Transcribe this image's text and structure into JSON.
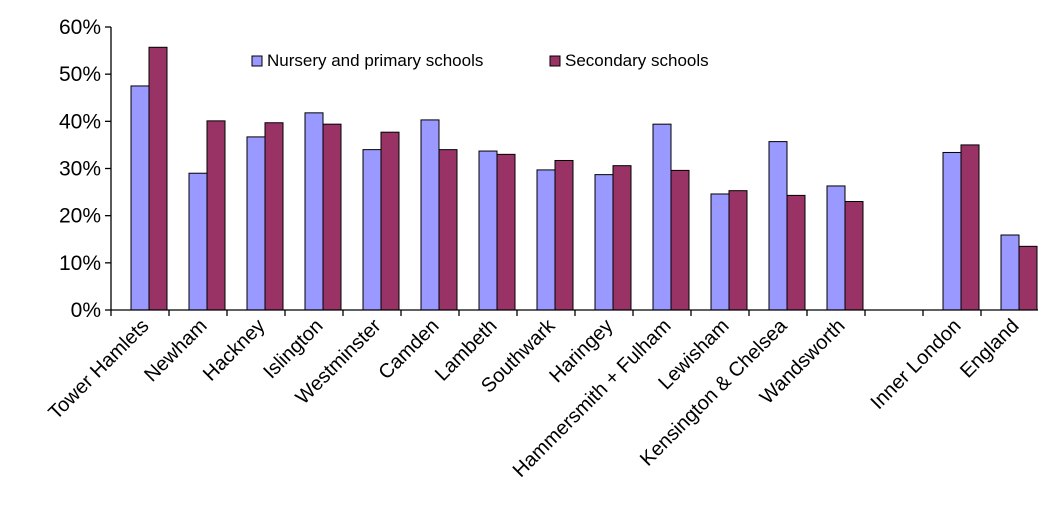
{
  "chart_data": {
    "type": "bar",
    "title": "",
    "xlabel": "",
    "ylabel": "",
    "ylim": [
      0,
      60
    ],
    "yticks": [
      "0%",
      "10%",
      "20%",
      "30%",
      "40%",
      "50%",
      "60%"
    ],
    "categories": [
      "Tower Hamlets",
      "Newham",
      "Hackney",
      "Islington",
      "Westminster",
      "Camden",
      "Lambeth",
      "Southwark",
      "Haringey",
      "Hammersmith + Fulham",
      "Lewisham",
      "Kensington & Chelsea",
      "Wandsworth",
      "",
      "Inner London",
      "England"
    ],
    "series": [
      {
        "name": "Nursery and primary schools",
        "color": "#9999ff",
        "values": [
          47.5,
          29,
          36.7,
          41.8,
          34,
          40.3,
          33.7,
          29.7,
          28.7,
          39.4,
          24.6,
          35.7,
          26.3,
          null,
          33.4,
          15.9
        ]
      },
      {
        "name": "Secondary schools",
        "color": "#993366",
        "values": [
          55.7,
          40.1,
          39.7,
          39.4,
          37.7,
          34,
          33,
          31.7,
          30.6,
          29.6,
          25.3,
          24.3,
          23,
          null,
          35,
          13.5
        ]
      }
    ],
    "legend_position": "top-center",
    "grid": false
  }
}
